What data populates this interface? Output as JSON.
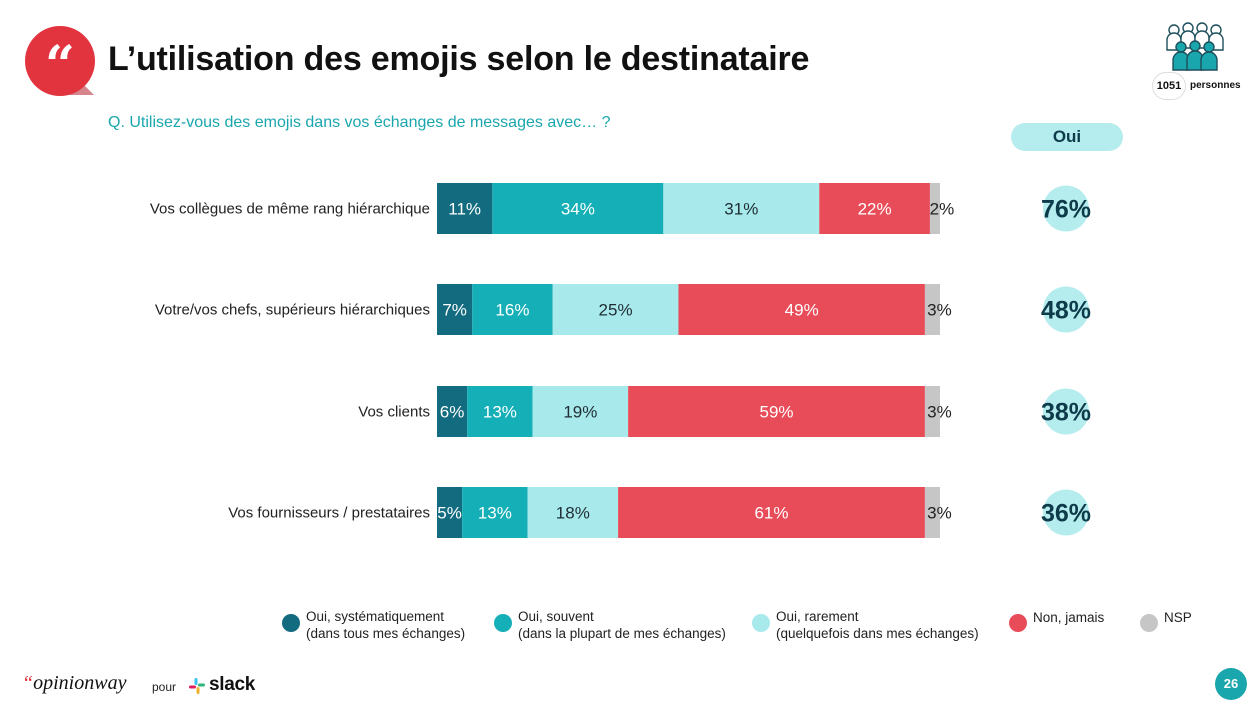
{
  "title": "L’utilisation des emojis selon le destinataire",
  "question": "Q. Utilisez-vous des emojis dans vos échanges de messages avec… ?",
  "sample": {
    "count": "1051",
    "label": "personnes"
  },
  "oui_header": "Oui",
  "colors": {
    "systematique": "#136b7f",
    "souvent": "#15afb7",
    "rarement": "#a8e9ec",
    "jamais": "#e84c59",
    "nsp": "#c6c6c6",
    "oui_circle": "#b5ecee",
    "accent": "#e2343f",
    "teal": "#1aa6ad"
  },
  "chart_data": {
    "type": "bar",
    "orientation": "horizontal-stacked",
    "categories": [
      "Vos collègues de même rang hiérarchique",
      "Votre/vos chefs, supérieurs hiérarchiques",
      "Vos clients",
      "Vos fournisseurs / prestataires"
    ],
    "series": [
      {
        "name": "Oui, systématiquement (dans tous mes échanges)",
        "values": [
          11,
          7,
          6,
          5
        ]
      },
      {
        "name": "Oui, souvent (dans la plupart de mes échanges)",
        "values": [
          34,
          16,
          13,
          13
        ]
      },
      {
        "name": "Oui, rarement (quelquefois dans mes échanges)",
        "values": [
          31,
          25,
          19,
          18
        ]
      },
      {
        "name": "Non, jamais",
        "values": [
          22,
          49,
          59,
          61
        ]
      },
      {
        "name": "NSP",
        "values": [
          2,
          3,
          3,
          3
        ]
      }
    ],
    "oui_totals": [
      76,
      48,
      38,
      36
    ],
    "unit": "%",
    "legend_position": "bottom"
  },
  "legend": [
    {
      "line1": "Oui, systématiquement",
      "line2": "(dans tous mes échanges)",
      "color": "#136b7f"
    },
    {
      "line1": "Oui, souvent",
      "line2": "(dans la plupart de mes échanges)",
      "color": "#15afb7"
    },
    {
      "line1": "Oui, rarement",
      "line2": "(quelquefois dans mes échanges)",
      "color": "#a8e9ec"
    },
    {
      "line1": "Non, jamais",
      "line2": "",
      "color": "#e84c59"
    },
    {
      "line1": "NSP",
      "line2": "",
      "color": "#c6c6c6"
    }
  ],
  "footer": {
    "brand": "opinionway",
    "pour": "pour",
    "partner": "slack",
    "page_number": "26"
  }
}
